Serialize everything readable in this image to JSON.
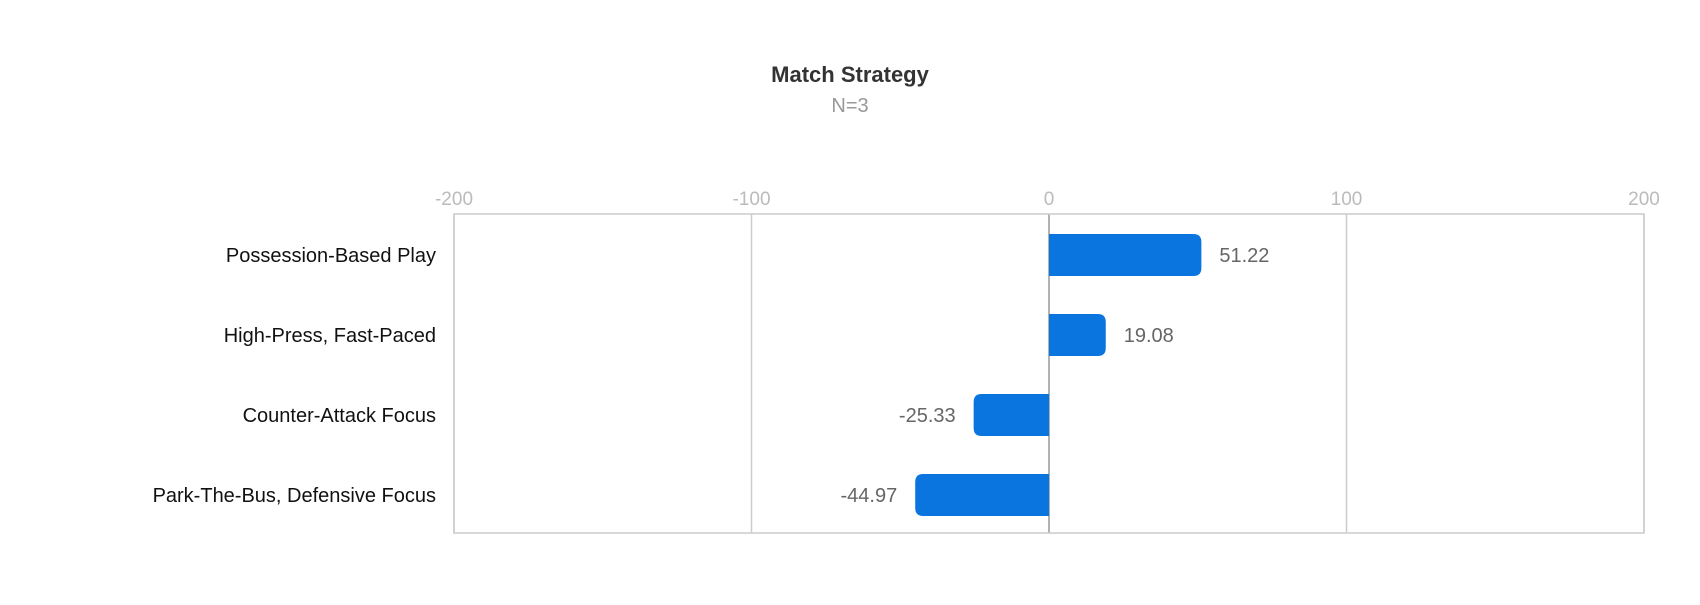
{
  "chart_data": {
    "type": "bar",
    "orientation": "horizontal",
    "title": "Match Strategy",
    "subtitle": "N=3",
    "categories": [
      "Possession-Based Play",
      "High-Press, Fast-Paced",
      "Counter-Attack Focus",
      "Park-The-Bus, Defensive Focus"
    ],
    "values": [
      51.22,
      19.08,
      -25.33,
      -44.97
    ],
    "value_labels": [
      "51.22",
      "19.08",
      "-25.33",
      "-44.97"
    ],
    "xlim": [
      -200,
      200
    ],
    "xticks": [
      -200,
      -100,
      0,
      100,
      200
    ],
    "xtick_labels": [
      "-200",
      "-100",
      "0",
      "100",
      "200"
    ],
    "xaxis_position": "top",
    "grid": true,
    "legend": "none",
    "bar_color": "#0a74df"
  }
}
